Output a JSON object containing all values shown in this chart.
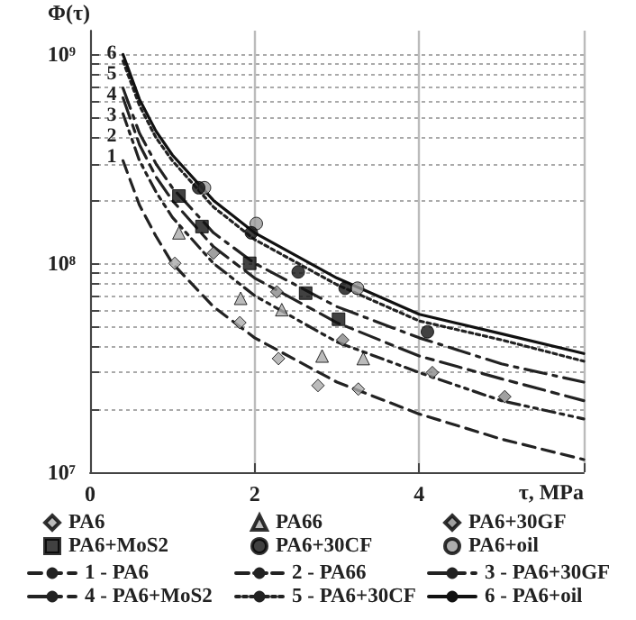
{
  "chart_data": {
    "type": "scatter",
    "xlabel": "τ, MPa",
    "ylabel": "Φ(τ)",
    "xlim": [
      0,
      6
    ],
    "xticks": [
      0,
      2,
      4,
      {
        "value": 6,
        "label": null
      }
    ],
    "ylim": [
      10000000,
      1300000000
    ],
    "yticks": [
      {
        "value": 10000000,
        "label": "10⁷"
      },
      {
        "value": 20000000,
        "label": null
      },
      {
        "value": 30000000,
        "label": null
      },
      {
        "value": 40000000,
        "label": null
      },
      {
        "value": 50000000,
        "label": null
      },
      {
        "value": 60000000,
        "label": null
      },
      {
        "value": 70000000,
        "label": null
      },
      {
        "value": 80000000,
        "label": null
      },
      {
        "value": 90000000,
        "label": null
      },
      {
        "value": 100000000,
        "label": "10⁸"
      },
      {
        "value": 200000000,
        "label": null
      },
      {
        "value": 300000000,
        "label": null
      },
      {
        "value": 400000000,
        "label": null
      },
      {
        "value": 500000000,
        "label": null
      },
      {
        "value": 600000000,
        "label": null
      },
      {
        "value": 700000000,
        "label": null
      },
      {
        "value": 800000000,
        "label": null
      },
      {
        "value": 900000000,
        "label": null
      },
      {
        "value": 1000000000,
        "label": "10⁹"
      }
    ],
    "log": "y",
    "grid": true,
    "legend": "bottom",
    "series": [
      {
        "name": "PA6",
        "marker": "diamond",
        "color": "#aaaaaa",
        "x": [
          1.03,
          1.82,
          2.29,
          2.77,
          3.26
        ],
        "values": [
          100000000,
          52000000,
          35000000,
          26000000,
          25000000
        ]
      },
      {
        "name": "PA66",
        "marker": "triangle",
        "color": "#aaaaaa",
        "x": [
          1.08,
          1.83,
          2.33,
          2.82,
          3.32
        ],
        "values": [
          140000000,
          68000000,
          60000000,
          36000000,
          35000000
        ]
      },
      {
        "name": "PA6+30GF",
        "marker": "diamond",
        "color": "#888888",
        "x": [
          1.5,
          2.27,
          3.07,
          4.16,
          5.04
        ],
        "values": [
          112000000,
          73000000,
          43000000,
          30000000,
          23000000
        ]
      },
      {
        "name": "PA6+MoS2",
        "marker": "square",
        "color": "#111111",
        "x": [
          1.08,
          1.36,
          1.94,
          2.62,
          3.02
        ],
        "values": [
          210000000,
          150000000,
          100000000,
          72000000,
          54000000
        ]
      },
      {
        "name": "PA6+30CF",
        "marker": "circle",
        "color": "#111111",
        "x": [
          1.32,
          1.96,
          2.53,
          3.1,
          4.1
        ],
        "values": [
          230000000,
          140000000,
          91000000,
          76000000,
          47000000
        ]
      },
      {
        "name": "PA6+oil",
        "marker": "circle",
        "color": "#999999",
        "x": [
          1.39,
          2.02,
          3.25
        ],
        "values": [
          230000000,
          155000000,
          76000000
        ]
      },
      {
        "name": "1 - PA6",
        "type": "line",
        "line_style": "dashed",
        "color": "#222222",
        "x": [
          0.4,
          0.6,
          0.8,
          1,
          1.5,
          2,
          3,
          4,
          5,
          6
        ],
        "values": [
          310000000,
          190000000,
          135000000,
          100000000,
          62000000,
          44000000,
          27000000,
          19000000,
          14400000,
          11500000
        ]
      },
      {
        "name": "2 - PA66",
        "type": "line",
        "line_style": "dashed",
        "color": "#222222",
        "x": [
          0.4,
          0.6,
          0.8,
          1,
          1.5,
          2,
          3,
          4,
          5,
          6
        ],
        "values": [
          520000000,
          310000000,
          220000000,
          166000000,
          100000000,
          70000000,
          42000000,
          30000000,
          22000000,
          18000000
        ]
      },
      {
        "name": "3 - PA6+30GF",
        "type": "line",
        "line_style": "dashed",
        "color": "#222222",
        "x": [
          0.4,
          0.6,
          0.8,
          1,
          1.5,
          2,
          3,
          4,
          5,
          6
        ],
        "values": [
          620000000,
          370000000,
          260000000,
          200000000,
          120000000,
          85000000,
          52000000,
          36000000,
          28000000,
          22000000
        ]
      },
      {
        "name": "4 - PA6+MoS2",
        "type": "line",
        "line_style": "dashed",
        "color": "#222222",
        "x": [
          0.4,
          0.6,
          0.8,
          1,
          1.5,
          2,
          3,
          4,
          5,
          6
        ],
        "values": [
          690000000,
          420000000,
          300000000,
          230000000,
          140000000,
          100000000,
          62000000,
          44000000,
          33000000,
          27000000
        ]
      },
      {
        "name": "5 - PA6+30CF",
        "type": "line",
        "line_style": "dotted",
        "color": "#222222",
        "x": [
          0.4,
          0.6,
          0.8,
          1,
          1.5,
          2,
          3,
          4,
          5,
          6
        ],
        "values": [
          930000000,
          570000000,
          400000000,
          310000000,
          186000000,
          130000000,
          79000000,
          53000000,
          43000000,
          34000000
        ]
      },
      {
        "name": "6 - PA6+oil",
        "type": "line",
        "line_style": "solid",
        "color": "#111111",
        "x": [
          0.4,
          0.6,
          0.8,
          1,
          1.5,
          2,
          3,
          4,
          5,
          6
        ],
        "values": [
          1000000000,
          610000000,
          430000000,
          330000000,
          200000000,
          140000000,
          85000000,
          57000000,
          46000000,
          37000000
        ]
      }
    ],
    "annotations": [
      "1",
      "2",
      "3",
      "4",
      "5",
      "6"
    ]
  }
}
